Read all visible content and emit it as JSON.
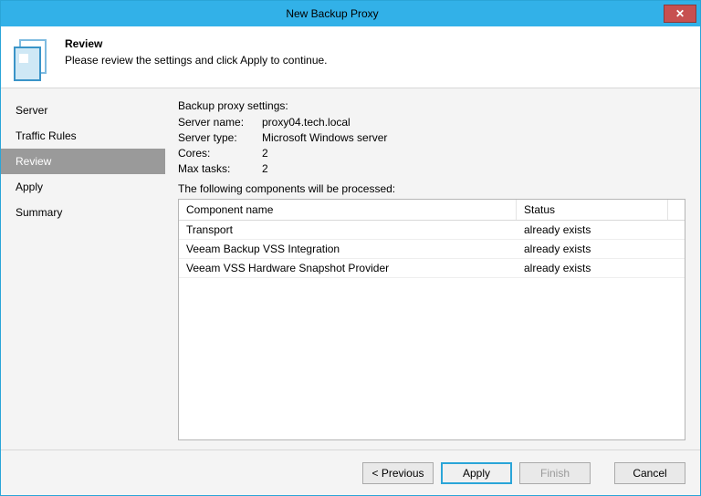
{
  "window": {
    "title": "New Backup Proxy",
    "close_glyph": "✕"
  },
  "header": {
    "title": "Review",
    "subtitle": "Please review the settings and click Apply to continue."
  },
  "sidebar": {
    "items": [
      {
        "label": "Server",
        "active": false
      },
      {
        "label": "Traffic Rules",
        "active": false
      },
      {
        "label": "Review",
        "active": true
      },
      {
        "label": "Apply",
        "active": false
      },
      {
        "label": "Summary",
        "active": false
      }
    ]
  },
  "content": {
    "settings_title": "Backup proxy settings:",
    "rows": [
      {
        "label": "Server name:",
        "value": "proxy04.tech.local"
      },
      {
        "label": "Server type:",
        "value": "Microsoft Windows server"
      },
      {
        "label": "Cores:",
        "value": "2"
      },
      {
        "label": "Max tasks:",
        "value": "2"
      }
    ],
    "components_title": "The following components will be processed:",
    "table": {
      "columns": [
        "Component name",
        "Status"
      ],
      "rows": [
        {
          "name": "Transport",
          "status": "already exists"
        },
        {
          "name": "Veeam Backup VSS Integration",
          "status": "already exists"
        },
        {
          "name": "Veeam VSS Hardware Snapshot Provider",
          "status": "already exists"
        }
      ]
    }
  },
  "footer": {
    "previous": "< Previous",
    "apply": "Apply",
    "finish": "Finish",
    "cancel": "Cancel"
  },
  "colors": {
    "accent": "#32b1e8",
    "close": "#c75050",
    "sidebar_active": "#9a9a9a"
  }
}
